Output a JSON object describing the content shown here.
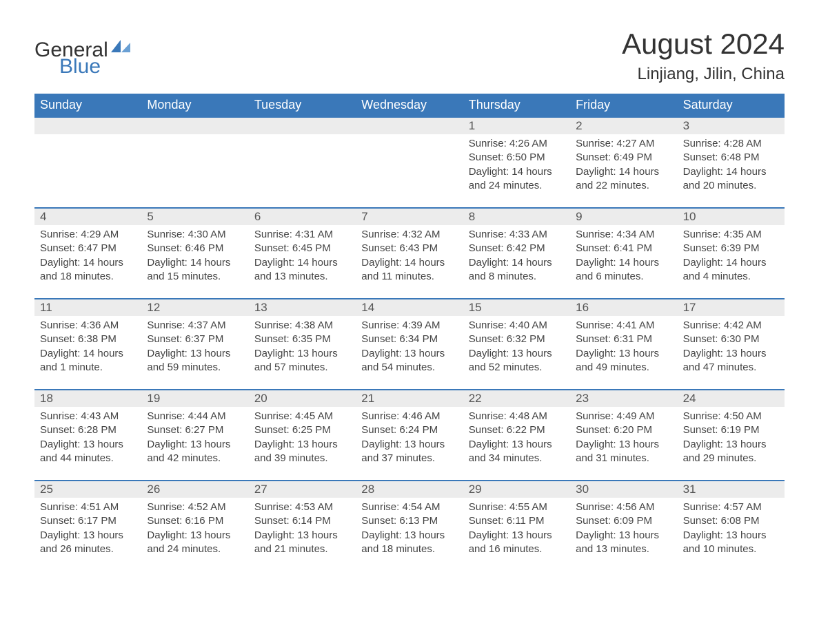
{
  "logo": {
    "text1": "General",
    "text2": "Blue"
  },
  "title": "August 2024",
  "location": "Linjiang, Jilin, China",
  "header_bg": "#3a78b9",
  "daynum_bg": "#ececec",
  "weekdays": [
    "Sunday",
    "Monday",
    "Tuesday",
    "Wednesday",
    "Thursday",
    "Friday",
    "Saturday"
  ],
  "weeks": [
    [
      null,
      null,
      null,
      null,
      {
        "d": "1",
        "sr": "Sunrise: 4:26 AM",
        "ss": "Sunset: 6:50 PM",
        "dl1": "Daylight: 14 hours",
        "dl2": "and 24 minutes."
      },
      {
        "d": "2",
        "sr": "Sunrise: 4:27 AM",
        "ss": "Sunset: 6:49 PM",
        "dl1": "Daylight: 14 hours",
        "dl2": "and 22 minutes."
      },
      {
        "d": "3",
        "sr": "Sunrise: 4:28 AM",
        "ss": "Sunset: 6:48 PM",
        "dl1": "Daylight: 14 hours",
        "dl2": "and 20 minutes."
      }
    ],
    [
      {
        "d": "4",
        "sr": "Sunrise: 4:29 AM",
        "ss": "Sunset: 6:47 PM",
        "dl1": "Daylight: 14 hours",
        "dl2": "and 18 minutes."
      },
      {
        "d": "5",
        "sr": "Sunrise: 4:30 AM",
        "ss": "Sunset: 6:46 PM",
        "dl1": "Daylight: 14 hours",
        "dl2": "and 15 minutes."
      },
      {
        "d": "6",
        "sr": "Sunrise: 4:31 AM",
        "ss": "Sunset: 6:45 PM",
        "dl1": "Daylight: 14 hours",
        "dl2": "and 13 minutes."
      },
      {
        "d": "7",
        "sr": "Sunrise: 4:32 AM",
        "ss": "Sunset: 6:43 PM",
        "dl1": "Daylight: 14 hours",
        "dl2": "and 11 minutes."
      },
      {
        "d": "8",
        "sr": "Sunrise: 4:33 AM",
        "ss": "Sunset: 6:42 PM",
        "dl1": "Daylight: 14 hours",
        "dl2": "and 8 minutes."
      },
      {
        "d": "9",
        "sr": "Sunrise: 4:34 AM",
        "ss": "Sunset: 6:41 PM",
        "dl1": "Daylight: 14 hours",
        "dl2": "and 6 minutes."
      },
      {
        "d": "10",
        "sr": "Sunrise: 4:35 AM",
        "ss": "Sunset: 6:39 PM",
        "dl1": "Daylight: 14 hours",
        "dl2": "and 4 minutes."
      }
    ],
    [
      {
        "d": "11",
        "sr": "Sunrise: 4:36 AM",
        "ss": "Sunset: 6:38 PM",
        "dl1": "Daylight: 14 hours",
        "dl2": "and 1 minute."
      },
      {
        "d": "12",
        "sr": "Sunrise: 4:37 AM",
        "ss": "Sunset: 6:37 PM",
        "dl1": "Daylight: 13 hours",
        "dl2": "and 59 minutes."
      },
      {
        "d": "13",
        "sr": "Sunrise: 4:38 AM",
        "ss": "Sunset: 6:35 PM",
        "dl1": "Daylight: 13 hours",
        "dl2": "and 57 minutes."
      },
      {
        "d": "14",
        "sr": "Sunrise: 4:39 AM",
        "ss": "Sunset: 6:34 PM",
        "dl1": "Daylight: 13 hours",
        "dl2": "and 54 minutes."
      },
      {
        "d": "15",
        "sr": "Sunrise: 4:40 AM",
        "ss": "Sunset: 6:32 PM",
        "dl1": "Daylight: 13 hours",
        "dl2": "and 52 minutes."
      },
      {
        "d": "16",
        "sr": "Sunrise: 4:41 AM",
        "ss": "Sunset: 6:31 PM",
        "dl1": "Daylight: 13 hours",
        "dl2": "and 49 minutes."
      },
      {
        "d": "17",
        "sr": "Sunrise: 4:42 AM",
        "ss": "Sunset: 6:30 PM",
        "dl1": "Daylight: 13 hours",
        "dl2": "and 47 minutes."
      }
    ],
    [
      {
        "d": "18",
        "sr": "Sunrise: 4:43 AM",
        "ss": "Sunset: 6:28 PM",
        "dl1": "Daylight: 13 hours",
        "dl2": "and 44 minutes."
      },
      {
        "d": "19",
        "sr": "Sunrise: 4:44 AM",
        "ss": "Sunset: 6:27 PM",
        "dl1": "Daylight: 13 hours",
        "dl2": "and 42 minutes."
      },
      {
        "d": "20",
        "sr": "Sunrise: 4:45 AM",
        "ss": "Sunset: 6:25 PM",
        "dl1": "Daylight: 13 hours",
        "dl2": "and 39 minutes."
      },
      {
        "d": "21",
        "sr": "Sunrise: 4:46 AM",
        "ss": "Sunset: 6:24 PM",
        "dl1": "Daylight: 13 hours",
        "dl2": "and 37 minutes."
      },
      {
        "d": "22",
        "sr": "Sunrise: 4:48 AM",
        "ss": "Sunset: 6:22 PM",
        "dl1": "Daylight: 13 hours",
        "dl2": "and 34 minutes."
      },
      {
        "d": "23",
        "sr": "Sunrise: 4:49 AM",
        "ss": "Sunset: 6:20 PM",
        "dl1": "Daylight: 13 hours",
        "dl2": "and 31 minutes."
      },
      {
        "d": "24",
        "sr": "Sunrise: 4:50 AM",
        "ss": "Sunset: 6:19 PM",
        "dl1": "Daylight: 13 hours",
        "dl2": "and 29 minutes."
      }
    ],
    [
      {
        "d": "25",
        "sr": "Sunrise: 4:51 AM",
        "ss": "Sunset: 6:17 PM",
        "dl1": "Daylight: 13 hours",
        "dl2": "and 26 minutes."
      },
      {
        "d": "26",
        "sr": "Sunrise: 4:52 AM",
        "ss": "Sunset: 6:16 PM",
        "dl1": "Daylight: 13 hours",
        "dl2": "and 24 minutes."
      },
      {
        "d": "27",
        "sr": "Sunrise: 4:53 AM",
        "ss": "Sunset: 6:14 PM",
        "dl1": "Daylight: 13 hours",
        "dl2": "and 21 minutes."
      },
      {
        "d": "28",
        "sr": "Sunrise: 4:54 AM",
        "ss": "Sunset: 6:13 PM",
        "dl1": "Daylight: 13 hours",
        "dl2": "and 18 minutes."
      },
      {
        "d": "29",
        "sr": "Sunrise: 4:55 AM",
        "ss": "Sunset: 6:11 PM",
        "dl1": "Daylight: 13 hours",
        "dl2": "and 16 minutes."
      },
      {
        "d": "30",
        "sr": "Sunrise: 4:56 AM",
        "ss": "Sunset: 6:09 PM",
        "dl1": "Daylight: 13 hours",
        "dl2": "and 13 minutes."
      },
      {
        "d": "31",
        "sr": "Sunrise: 4:57 AM",
        "ss": "Sunset: 6:08 PM",
        "dl1": "Daylight: 13 hours",
        "dl2": "and 10 minutes."
      }
    ]
  ]
}
